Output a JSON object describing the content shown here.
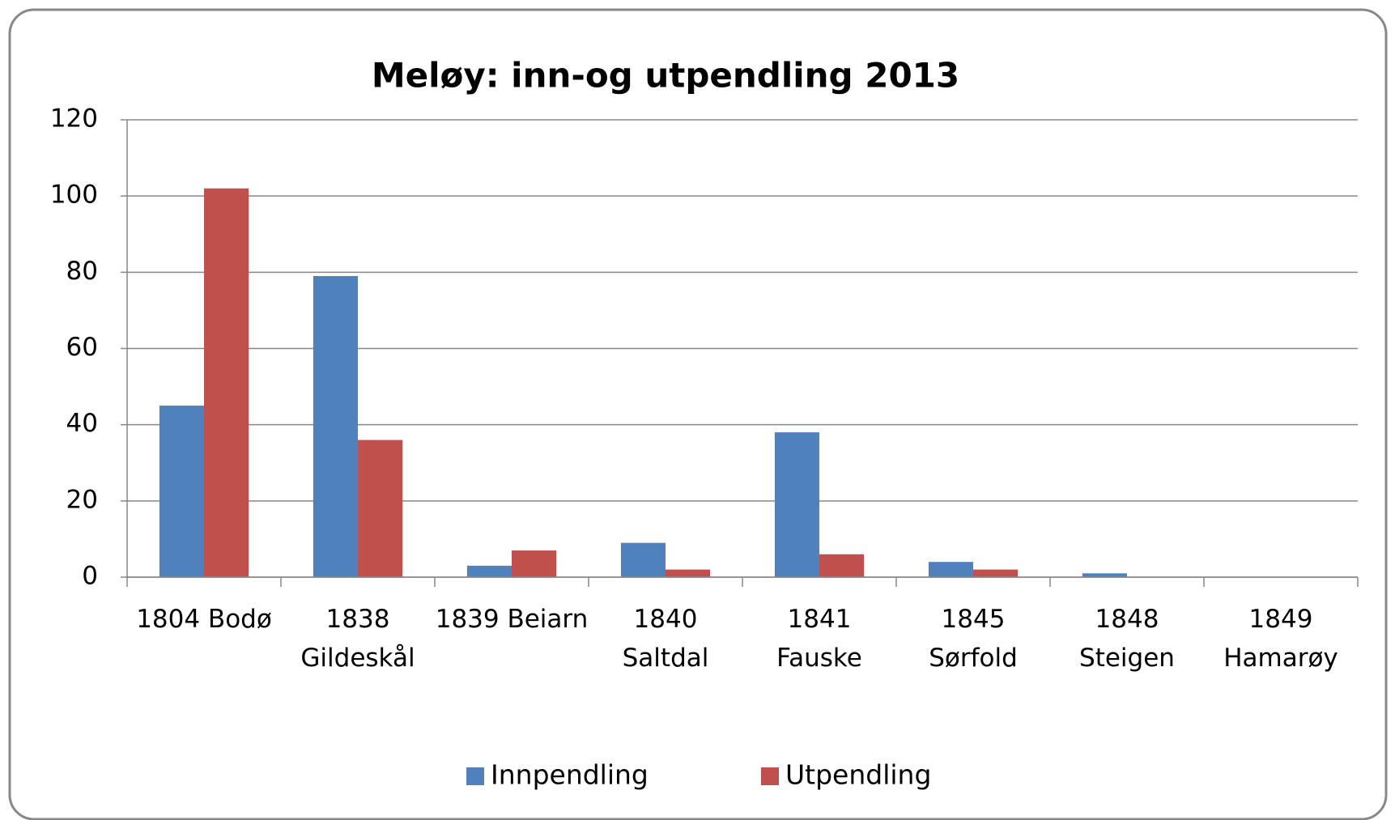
{
  "chart_data": {
    "type": "bar",
    "title": "Meløy: inn-og utpendling 2013",
    "categories": [
      "1804 Bodø",
      "1838\nGildeskål",
      "1839 Beiarn",
      "1840\nSaltdal",
      "1841\nFauske",
      "1845\nSørfold",
      "1848\nSteigen",
      "1849\nHamarøy"
    ],
    "series": [
      {
        "name": "Innpendling",
        "color": "#4f81bd",
        "values": [
          45,
          79,
          3,
          9,
          38,
          4,
          1,
          0
        ]
      },
      {
        "name": "Utpendling",
        "color": "#c0504d",
        "values": [
          102,
          36,
          7,
          2,
          6,
          2,
          0,
          0
        ]
      }
    ],
    "ylim": [
      0,
      120
    ],
    "yticks": [
      0,
      20,
      40,
      60,
      80,
      100,
      120
    ],
    "grid": true,
    "legend": "bottom"
  }
}
